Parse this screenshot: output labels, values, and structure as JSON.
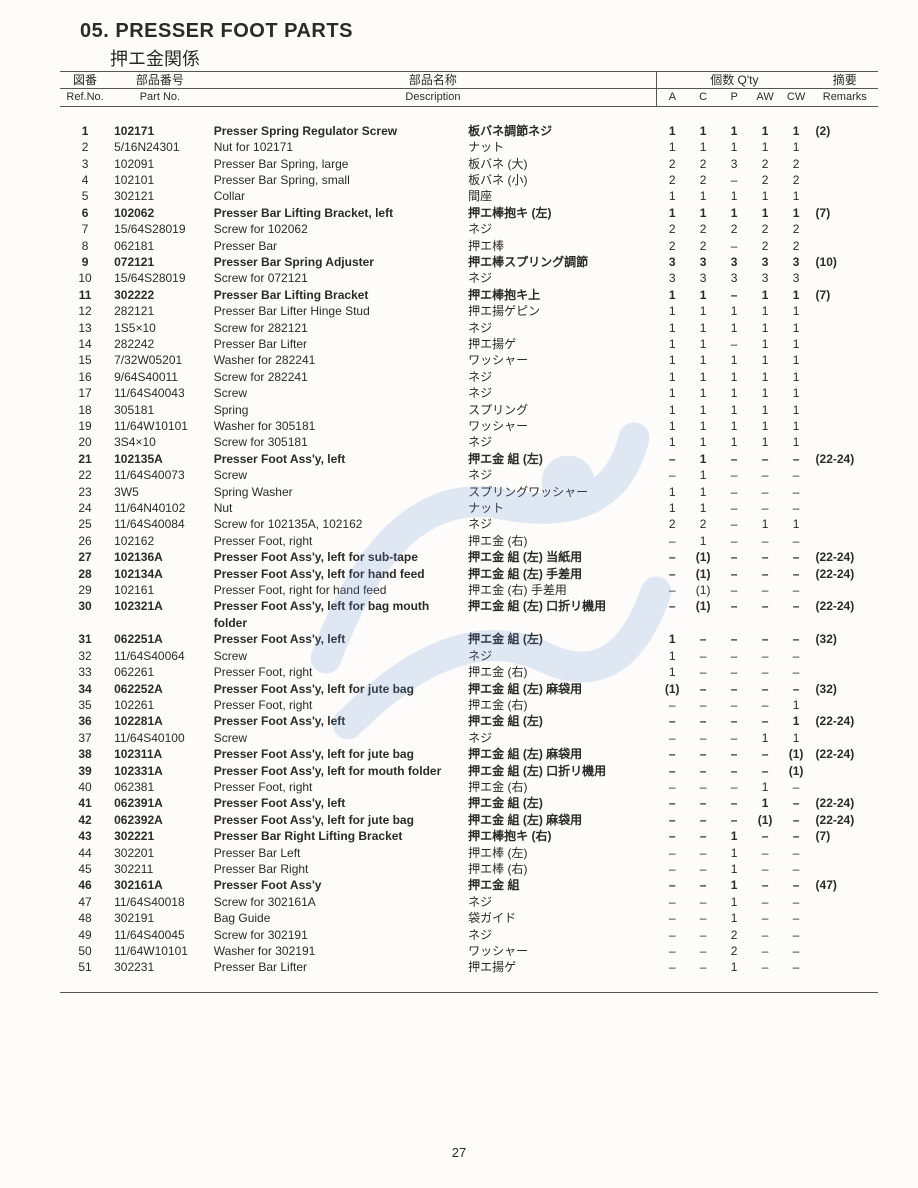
{
  "section_number": "05.",
  "section_title_en": "PRESSER FOOT PARTS",
  "section_title_jp": "押エ金関係",
  "page_number": "27",
  "watermark_color": "#5b8fd6",
  "header": {
    "ref_jp": "図番",
    "ref_en": "Ref.No.",
    "part_jp": "部品番号",
    "part_en": "Part No.",
    "desc_jp": "部品名称",
    "desc_en": "Description",
    "qty_jp": "個数 Q'ty",
    "remarks_jp": "摘要",
    "remarks_en": "Remarks",
    "qcols": [
      "A",
      "C",
      "P",
      "AW",
      "CW"
    ]
  },
  "rows": [
    {
      "ref": "1",
      "part": "102171",
      "desc": "Presser Spring Regulator Screw",
      "descjp": "板バネ調節ネジ",
      "q": [
        "1",
        "1",
        "1",
        "1",
        "1"
      ],
      "rem": "(2)",
      "bold": true
    },
    {
      "ref": "2",
      "part": "5/16N24301",
      "desc": "Nut for 102171",
      "descjp": "ナット",
      "q": [
        "1",
        "1",
        "1",
        "1",
        "1"
      ],
      "rem": ""
    },
    {
      "ref": "3",
      "part": "102091",
      "desc": "Presser Bar Spring, large",
      "descjp": "板バネ (大)",
      "q": [
        "2",
        "2",
        "3",
        "2",
        "2"
      ],
      "rem": ""
    },
    {
      "ref": "4",
      "part": "102101",
      "desc": "Presser Bar Spring, small",
      "descjp": "板バネ (小)",
      "q": [
        "2",
        "2",
        "–",
        "2",
        "2"
      ],
      "rem": ""
    },
    {
      "ref": "5",
      "part": "302121",
      "desc": "Collar",
      "descjp": "間座",
      "q": [
        "1",
        "1",
        "1",
        "1",
        "1"
      ],
      "rem": ""
    },
    {
      "ref": "6",
      "part": "102062",
      "desc": "Presser Bar Lifting Bracket, left",
      "descjp": "押エ棒抱キ (左)",
      "q": [
        "1",
        "1",
        "1",
        "1",
        "1"
      ],
      "rem": "(7)",
      "bold": true
    },
    {
      "ref": "7",
      "part": "15/64S28019",
      "desc": "Screw for 102062",
      "descjp": "ネジ",
      "q": [
        "2",
        "2",
        "2",
        "2",
        "2"
      ],
      "rem": ""
    },
    {
      "ref": "8",
      "part": "062181",
      "desc": "Presser Bar",
      "descjp": "押エ棒",
      "q": [
        "2",
        "2",
        "–",
        "2",
        "2"
      ],
      "rem": ""
    },
    {
      "ref": "9",
      "part": "072121",
      "desc": "Presser Bar Spring Adjuster",
      "descjp": "押エ棒スプリング調節",
      "q": [
        "3",
        "3",
        "3",
        "3",
        "3"
      ],
      "rem": "(10)",
      "bold": true
    },
    {
      "ref": "10",
      "part": "15/64S28019",
      "desc": "Screw for 072121",
      "descjp": "ネジ",
      "q": [
        "3",
        "3",
        "3",
        "3",
        "3"
      ],
      "rem": ""
    },
    {
      "ref": "11",
      "part": "302222",
      "desc": "Presser Bar Lifting Bracket",
      "descjp": "押エ棒抱キ上",
      "q": [
        "1",
        "1",
        "–",
        "1",
        "1"
      ],
      "rem": "(7)",
      "bold": true
    },
    {
      "ref": "12",
      "part": "282121",
      "desc": "Presser Bar Lifter Hinge Stud",
      "descjp": "押エ揚ゲピン",
      "q": [
        "1",
        "1",
        "1",
        "1",
        "1"
      ],
      "rem": ""
    },
    {
      "ref": "13",
      "part": "1S5×10",
      "desc": "Screw for 282121",
      "descjp": "ネジ",
      "q": [
        "1",
        "1",
        "1",
        "1",
        "1"
      ],
      "rem": ""
    },
    {
      "ref": "14",
      "part": "282242",
      "desc": "Presser Bar Lifter",
      "descjp": "押エ揚ゲ",
      "q": [
        "1",
        "1",
        "–",
        "1",
        "1"
      ],
      "rem": ""
    },
    {
      "ref": "15",
      "part": "7/32W05201",
      "desc": "Washer for 282241",
      "descjp": "ワッシャー",
      "q": [
        "1",
        "1",
        "1",
        "1",
        "1"
      ],
      "rem": ""
    },
    {
      "ref": "16",
      "part": "9/64S40011",
      "desc": "Screw for 282241",
      "descjp": "ネジ",
      "q": [
        "1",
        "1",
        "1",
        "1",
        "1"
      ],
      "rem": ""
    },
    {
      "ref": "17",
      "part": "11/64S40043",
      "desc": "Screw",
      "descjp": "ネジ",
      "q": [
        "1",
        "1",
        "1",
        "1",
        "1"
      ],
      "rem": ""
    },
    {
      "ref": "18",
      "part": "305181",
      "desc": "Spring",
      "descjp": "スプリング",
      "q": [
        "1",
        "1",
        "1",
        "1",
        "1"
      ],
      "rem": ""
    },
    {
      "ref": "19",
      "part": "11/64W10101",
      "desc": "Washer for 305181",
      "descjp": "ワッシャー",
      "q": [
        "1",
        "1",
        "1",
        "1",
        "1"
      ],
      "rem": ""
    },
    {
      "ref": "20",
      "part": "3S4×10",
      "desc": "Screw for 305181",
      "descjp": "ネジ",
      "q": [
        "1",
        "1",
        "1",
        "1",
        "1"
      ],
      "rem": ""
    },
    {
      "ref": "21",
      "part": "102135A",
      "desc": "Presser Foot Ass'y, left",
      "descjp": "押エ金 組 (左)",
      "q": [
        "–",
        "1",
        "–",
        "–",
        "–"
      ],
      "rem": "(22-24)",
      "bold": true
    },
    {
      "ref": "22",
      "part": "11/64S40073",
      "desc": "Screw",
      "descjp": "ネジ",
      "q": [
        "–",
        "1",
        "–",
        "–",
        "–"
      ],
      "rem": ""
    },
    {
      "ref": "23",
      "part": "3W5",
      "desc": "Spring Washer",
      "descjp": "スプリングワッシャー",
      "q": [
        "1",
        "1",
        "–",
        "–",
        "–"
      ],
      "rem": ""
    },
    {
      "ref": "24",
      "part": "11/64N40102",
      "desc": "Nut",
      "descjp": "ナット",
      "q": [
        "1",
        "1",
        "–",
        "–",
        "–"
      ],
      "rem": ""
    },
    {
      "ref": "25",
      "part": "11/64S40084",
      "desc": "Screw for 102135A, 102162",
      "descjp": "ネジ",
      "q": [
        "2",
        "2",
        "–",
        "1",
        "1"
      ],
      "rem": ""
    },
    {
      "ref": "26",
      "part": "102162",
      "desc": "Presser Foot, right",
      "descjp": "押エ金 (右)",
      "q": [
        "–",
        "1",
        "–",
        "–",
        "–"
      ],
      "rem": ""
    },
    {
      "ref": "27",
      "part": "102136A",
      "desc": "Presser Foot Ass'y, left for sub-tape",
      "descjp": "押エ金 組 (左) 当紙用",
      "q": [
        "–",
        "(1)",
        "–",
        "–",
        "–"
      ],
      "rem": "(22-24)",
      "bold": true
    },
    {
      "ref": "28",
      "part": "102134A",
      "desc": "Presser Foot Ass'y, left for hand feed",
      "descjp": "押エ金 組 (左) 手差用",
      "q": [
        "–",
        "(1)",
        "–",
        "–",
        "–"
      ],
      "rem": "(22-24)",
      "bold": true
    },
    {
      "ref": "29",
      "part": "102161",
      "desc": "Presser Foot, right for hand feed",
      "descjp": "押エ金 (右) 手差用",
      "q": [
        "–",
        "(1)",
        "–",
        "–",
        "–"
      ],
      "rem": ""
    },
    {
      "ref": "30",
      "part": "102321A",
      "desc": "Presser Foot Ass'y, left for bag mouth folder",
      "descjp": "押エ金 組 (左) 口折リ機用",
      "q": [
        "–",
        "(1)",
        "–",
        "–",
        "–"
      ],
      "rem": "(22-24)",
      "bold": true
    },
    {
      "ref": "31",
      "part": "062251A",
      "desc": "Presser Foot Ass'y, left",
      "descjp": "押エ金 組 (左)",
      "q": [
        "1",
        "–",
        "–",
        "–",
        "–"
      ],
      "rem": "(32)",
      "bold": true
    },
    {
      "ref": "32",
      "part": "11/64S40064",
      "desc": "Screw",
      "descjp": "ネジ",
      "q": [
        "1",
        "–",
        "–",
        "–",
        "–"
      ],
      "rem": ""
    },
    {
      "ref": "33",
      "part": "062261",
      "desc": "Presser Foot, right",
      "descjp": "押エ金 (右)",
      "q": [
        "1",
        "–",
        "–",
        "–",
        "–"
      ],
      "rem": ""
    },
    {
      "ref": "34",
      "part": "062252A",
      "desc": "Presser Foot Ass'y, left for jute bag",
      "descjp": "押エ金 組 (左) 麻袋用",
      "q": [
        "(1)",
        "–",
        "–",
        "–",
        "–"
      ],
      "rem": "(32)",
      "bold": true
    },
    {
      "ref": "35",
      "part": "102261",
      "desc": "Presser Foot, right",
      "descjp": "押エ金 (右)",
      "q": [
        "–",
        "–",
        "–",
        "–",
        "1"
      ],
      "rem": ""
    },
    {
      "ref": "36",
      "part": "102281A",
      "desc": "Presser Foot Ass'y, left",
      "descjp": "押エ金 組 (左)",
      "q": [
        "–",
        "–",
        "–",
        "–",
        "1"
      ],
      "rem": "(22-24)",
      "bold": true
    },
    {
      "ref": "37",
      "part": "11/64S40100",
      "desc": "Screw",
      "descjp": "ネジ",
      "q": [
        "–",
        "–",
        "–",
        "1",
        "1"
      ],
      "rem": ""
    },
    {
      "ref": "38",
      "part": "102311A",
      "desc": "Presser Foot Ass'y, left for jute bag",
      "descjp": "押エ金 組 (左) 麻袋用",
      "q": [
        "–",
        "–",
        "–",
        "–",
        "(1)"
      ],
      "rem": "(22-24)",
      "bold": true
    },
    {
      "ref": "39",
      "part": "102331A",
      "desc": "Presser Foot Ass'y, left for mouth folder",
      "descjp": "押エ金 組 (左) 口折リ機用",
      "q": [
        "–",
        "–",
        "–",
        "–",
        "(1)"
      ],
      "rem": "",
      "bold": true
    },
    {
      "ref": "40",
      "part": "062381",
      "desc": "Presser Foot, right",
      "descjp": "押エ金 (右)",
      "q": [
        "–",
        "–",
        "–",
        "1",
        "–"
      ],
      "rem": ""
    },
    {
      "ref": "41",
      "part": "062391A",
      "desc": "Presser Foot Ass'y, left",
      "descjp": "押エ金 組 (左)",
      "q": [
        "–",
        "–",
        "–",
        "1",
        "–"
      ],
      "rem": "(22-24)",
      "bold": true
    },
    {
      "ref": "42",
      "part": "062392A",
      "desc": "Presser Foot Ass'y, left for jute bag",
      "descjp": "押エ金 組 (左) 麻袋用",
      "q": [
        "–",
        "–",
        "–",
        "(1)",
        "–"
      ],
      "rem": "(22-24)",
      "bold": true
    },
    {
      "ref": "43",
      "part": "302221",
      "desc": "Presser Bar Right Lifting Bracket",
      "descjp": "押エ棒抱キ (右)",
      "q": [
        "–",
        "–",
        "1",
        "–",
        "–"
      ],
      "rem": "(7)",
      "bold": true
    },
    {
      "ref": "44",
      "part": "302201",
      "desc": "Presser Bar Left",
      "descjp": "押エ棒 (左)",
      "q": [
        "–",
        "–",
        "1",
        "–",
        "–"
      ],
      "rem": ""
    },
    {
      "ref": "45",
      "part": "302211",
      "desc": "Presser Bar Right",
      "descjp": "押エ棒 (右)",
      "q": [
        "–",
        "–",
        "1",
        "–",
        "–"
      ],
      "rem": ""
    },
    {
      "ref": "46",
      "part": "302161A",
      "desc": "Presser Foot Ass'y",
      "descjp": "押エ金 組",
      "q": [
        "–",
        "–",
        "1",
        "–",
        "–"
      ],
      "rem": "(47)",
      "bold": true
    },
    {
      "ref": "47",
      "part": "11/64S40018",
      "desc": "Screw for 302161A",
      "descjp": "ネジ",
      "q": [
        "–",
        "–",
        "1",
        "–",
        "–"
      ],
      "rem": ""
    },
    {
      "ref": "48",
      "part": "302191",
      "desc": "Bag Guide",
      "descjp": "袋ガイド",
      "q": [
        "–",
        "–",
        "1",
        "–",
        "–"
      ],
      "rem": ""
    },
    {
      "ref": "49",
      "part": "11/64S40045",
      "desc": "Screw for 302191",
      "descjp": "ネジ",
      "q": [
        "–",
        "–",
        "2",
        "–",
        "–"
      ],
      "rem": ""
    },
    {
      "ref": "50",
      "part": "11/64W10101",
      "desc": "Washer for 302191",
      "descjp": "ワッシャー",
      "q": [
        "–",
        "–",
        "2",
        "–",
        "–"
      ],
      "rem": ""
    },
    {
      "ref": "51",
      "part": "302231",
      "desc": "Presser Bar Lifter",
      "descjp": "押エ揚ゲ",
      "q": [
        "–",
        "–",
        "1",
        "–",
        "–"
      ],
      "rem": ""
    }
  ]
}
